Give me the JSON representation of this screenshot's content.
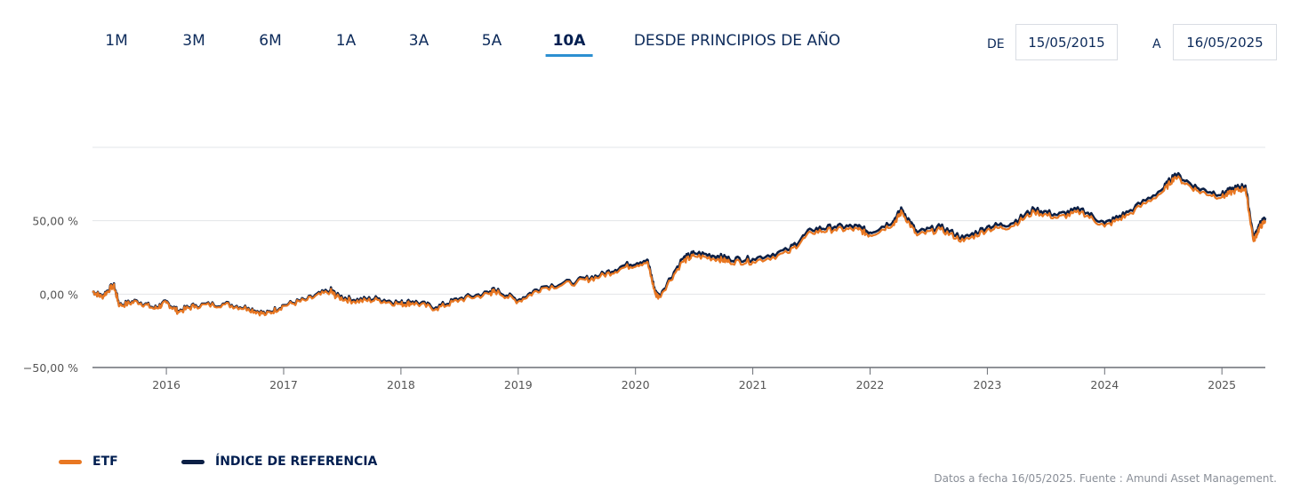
{
  "periods": [
    {
      "label": "1M",
      "active": false
    },
    {
      "label": "3M",
      "active": false
    },
    {
      "label": "6M",
      "active": false
    },
    {
      "label": "1A",
      "active": false
    },
    {
      "label": "3A",
      "active": false
    },
    {
      "label": "5A",
      "active": false
    },
    {
      "label": "10A",
      "active": true
    },
    {
      "label": "DESDE PRINCIPIOS DE AÑO",
      "active": false
    }
  ],
  "date_range": {
    "from_label": "DE",
    "from_value": "15/05/2015",
    "to_label": "A",
    "to_value": "16/05/2025"
  },
  "legend": {
    "etf_label": "ETF",
    "index_label": "ÍNDICE DE REFERENCIA"
  },
  "source_note": "Datos a fecha 16/05/2025. Fuente : Amundi Asset Management.",
  "colors": {
    "etf": "#e87722",
    "index": "#0b1f45",
    "grid": "#e3e5e8",
    "axis": "#555555",
    "tab_underline": "#2c8fd1",
    "text": "#0c2a5a"
  },
  "chart_data": {
    "type": "line",
    "title": "",
    "xlabel": "",
    "ylabel": "",
    "x_range": [
      2015.37,
      2025.37
    ],
    "ylim": [
      -50,
      100
    ],
    "y_ticks": [
      {
        "value": -50,
        "label": "−50,00 %"
      },
      {
        "value": 0,
        "label": "0,00 %"
      },
      {
        "value": 50,
        "label": "50,00 %"
      }
    ],
    "x_ticks": [
      {
        "value": 2016,
        "label": "2016"
      },
      {
        "value": 2017,
        "label": "2017"
      },
      {
        "value": 2018,
        "label": "2018"
      },
      {
        "value": 2019,
        "label": "2019"
      },
      {
        "value": 2020,
        "label": "2020"
      },
      {
        "value": 2021,
        "label": "2021"
      },
      {
        "value": 2022,
        "label": "2022"
      },
      {
        "value": 2023,
        "label": "2023"
      },
      {
        "value": 2024,
        "label": "2024"
      },
      {
        "value": 2025,
        "label": "2025"
      }
    ],
    "grid": true,
    "legend_position": "bottom-left",
    "series": [
      {
        "name": "ETF",
        "x": [
          2015.37,
          2015.45,
          2015.55,
          2015.6,
          2015.75,
          2015.9,
          2016.0,
          2016.1,
          2016.25,
          2016.5,
          2016.7,
          2016.85,
          2017.0,
          2017.2,
          2017.4,
          2017.45,
          2017.6,
          2017.8,
          2018.0,
          2018.1,
          2018.3,
          2018.5,
          2018.75,
          2018.8,
          2019.0,
          2019.2,
          2019.5,
          2019.7,
          2019.9,
          2020.1,
          2020.17,
          2020.2,
          2020.4,
          2020.5,
          2020.7,
          2020.8,
          2021.0,
          2021.3,
          2021.5,
          2021.7,
          2021.9,
          2022.0,
          2022.2,
          2022.27,
          2022.4,
          2022.6,
          2022.8,
          2023.0,
          2023.2,
          2023.4,
          2023.6,
          2023.8,
          2024.0,
          2024.2,
          2024.5,
          2024.6,
          2024.8,
          2025.0,
          2025.1,
          2025.2,
          2025.27,
          2025.32,
          2025.37
        ],
        "values": [
          2,
          -2,
          6,
          -8,
          -5,
          -10,
          -6,
          -12,
          -8,
          -7,
          -10,
          -14,
          -8,
          -4,
          2,
          -2,
          -5,
          -4,
          -7,
          -6,
          -10,
          -4,
          0,
          2,
          -5,
          4,
          8,
          12,
          18,
          22,
          0,
          -2,
          22,
          26,
          24,
          22,
          22,
          28,
          42,
          44,
          44,
          40,
          48,
          56,
          40,
          44,
          36,
          44,
          46,
          56,
          52,
          56,
          46,
          54,
          70,
          80,
          70,
          66,
          70,
          72,
          36,
          45,
          50
        ]
      },
      {
        "name": "ÍNDICE DE REFERENCIA",
        "x": [
          2015.37,
          2015.45,
          2015.55,
          2015.6,
          2015.75,
          2015.9,
          2016.0,
          2016.1,
          2016.25,
          2016.5,
          2016.7,
          2016.85,
          2017.0,
          2017.2,
          2017.4,
          2017.45,
          2017.6,
          2017.8,
          2018.0,
          2018.1,
          2018.3,
          2018.5,
          2018.75,
          2018.8,
          2019.0,
          2019.2,
          2019.5,
          2019.7,
          2019.9,
          2020.1,
          2020.17,
          2020.2,
          2020.4,
          2020.5,
          2020.7,
          2020.8,
          2021.0,
          2021.3,
          2021.5,
          2021.7,
          2021.9,
          2022.0,
          2022.2,
          2022.27,
          2022.4,
          2022.6,
          2022.8,
          2023.0,
          2023.2,
          2023.4,
          2023.6,
          2023.8,
          2024.0,
          2024.2,
          2024.5,
          2024.6,
          2024.8,
          2025.0,
          2025.1,
          2025.2,
          2025.27,
          2025.32,
          2025.37
        ],
        "values": [
          2,
          -1.5,
          6.5,
          -7.5,
          -4.5,
          -9.5,
          -5.5,
          -11.5,
          -7.5,
          -6.5,
          -9.5,
          -13.5,
          -7.5,
          -3.5,
          3,
          -1,
          -4,
          -3,
          -6,
          -5,
          -9,
          -3,
          1,
          3,
          -4,
          5,
          9,
          13,
          19.5,
          23.5,
          1,
          -1,
          24,
          28,
          26,
          24,
          24,
          30,
          44,
          46,
          46,
          42,
          50,
          58,
          42,
          46,
          38,
          46,
          48,
          58,
          54,
          58,
          48,
          56,
          72,
          82,
          72,
          68,
          72,
          74,
          38,
          47,
          52
        ]
      }
    ]
  }
}
